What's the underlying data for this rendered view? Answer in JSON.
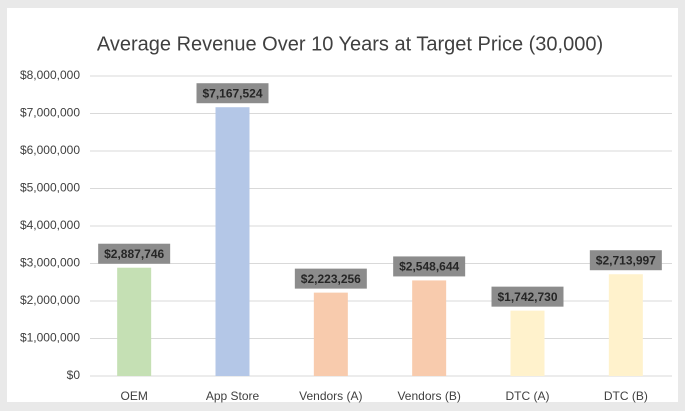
{
  "chart_data": {
    "type": "bar",
    "title": "Average Revenue Over 10 Years at Target Price (30,000)",
    "categories": [
      "OEM",
      "App Store",
      "Vendors (A)",
      "Vendors (B)",
      "DTC (A)",
      "DTC (B)"
    ],
    "values": [
      2887746,
      7167524,
      2223256,
      2548644,
      1742730,
      2713997
    ],
    "value_labels": [
      "$2,887,746",
      "$7,167,524",
      "$2,223,256",
      "$2,548,644",
      "$1,742,730",
      "$2,713,997"
    ],
    "colors": [
      "#c5e0b4",
      "#b4c7e7",
      "#f8cbad",
      "#f8cbad",
      "#fff2cc",
      "#fff2cc"
    ],
    "ylim": [
      0,
      8000000
    ],
    "yticks": [
      {
        "value": 0,
        "label": "$0"
      },
      {
        "value": 1000000,
        "label": "$1,000,000"
      },
      {
        "value": 2000000,
        "label": "$2,000,000"
      },
      {
        "value": 3000000,
        "label": "$3,000,000"
      },
      {
        "value": 4000000,
        "label": "$4,000,000"
      },
      {
        "value": 5000000,
        "label": "$5,000,000"
      },
      {
        "value": 6000000,
        "label": "$6,000,000"
      },
      {
        "value": 7000000,
        "label": "$7,000,000"
      },
      {
        "value": 8000000,
        "label": "$8,000,000"
      }
    ],
    "grid": true
  }
}
